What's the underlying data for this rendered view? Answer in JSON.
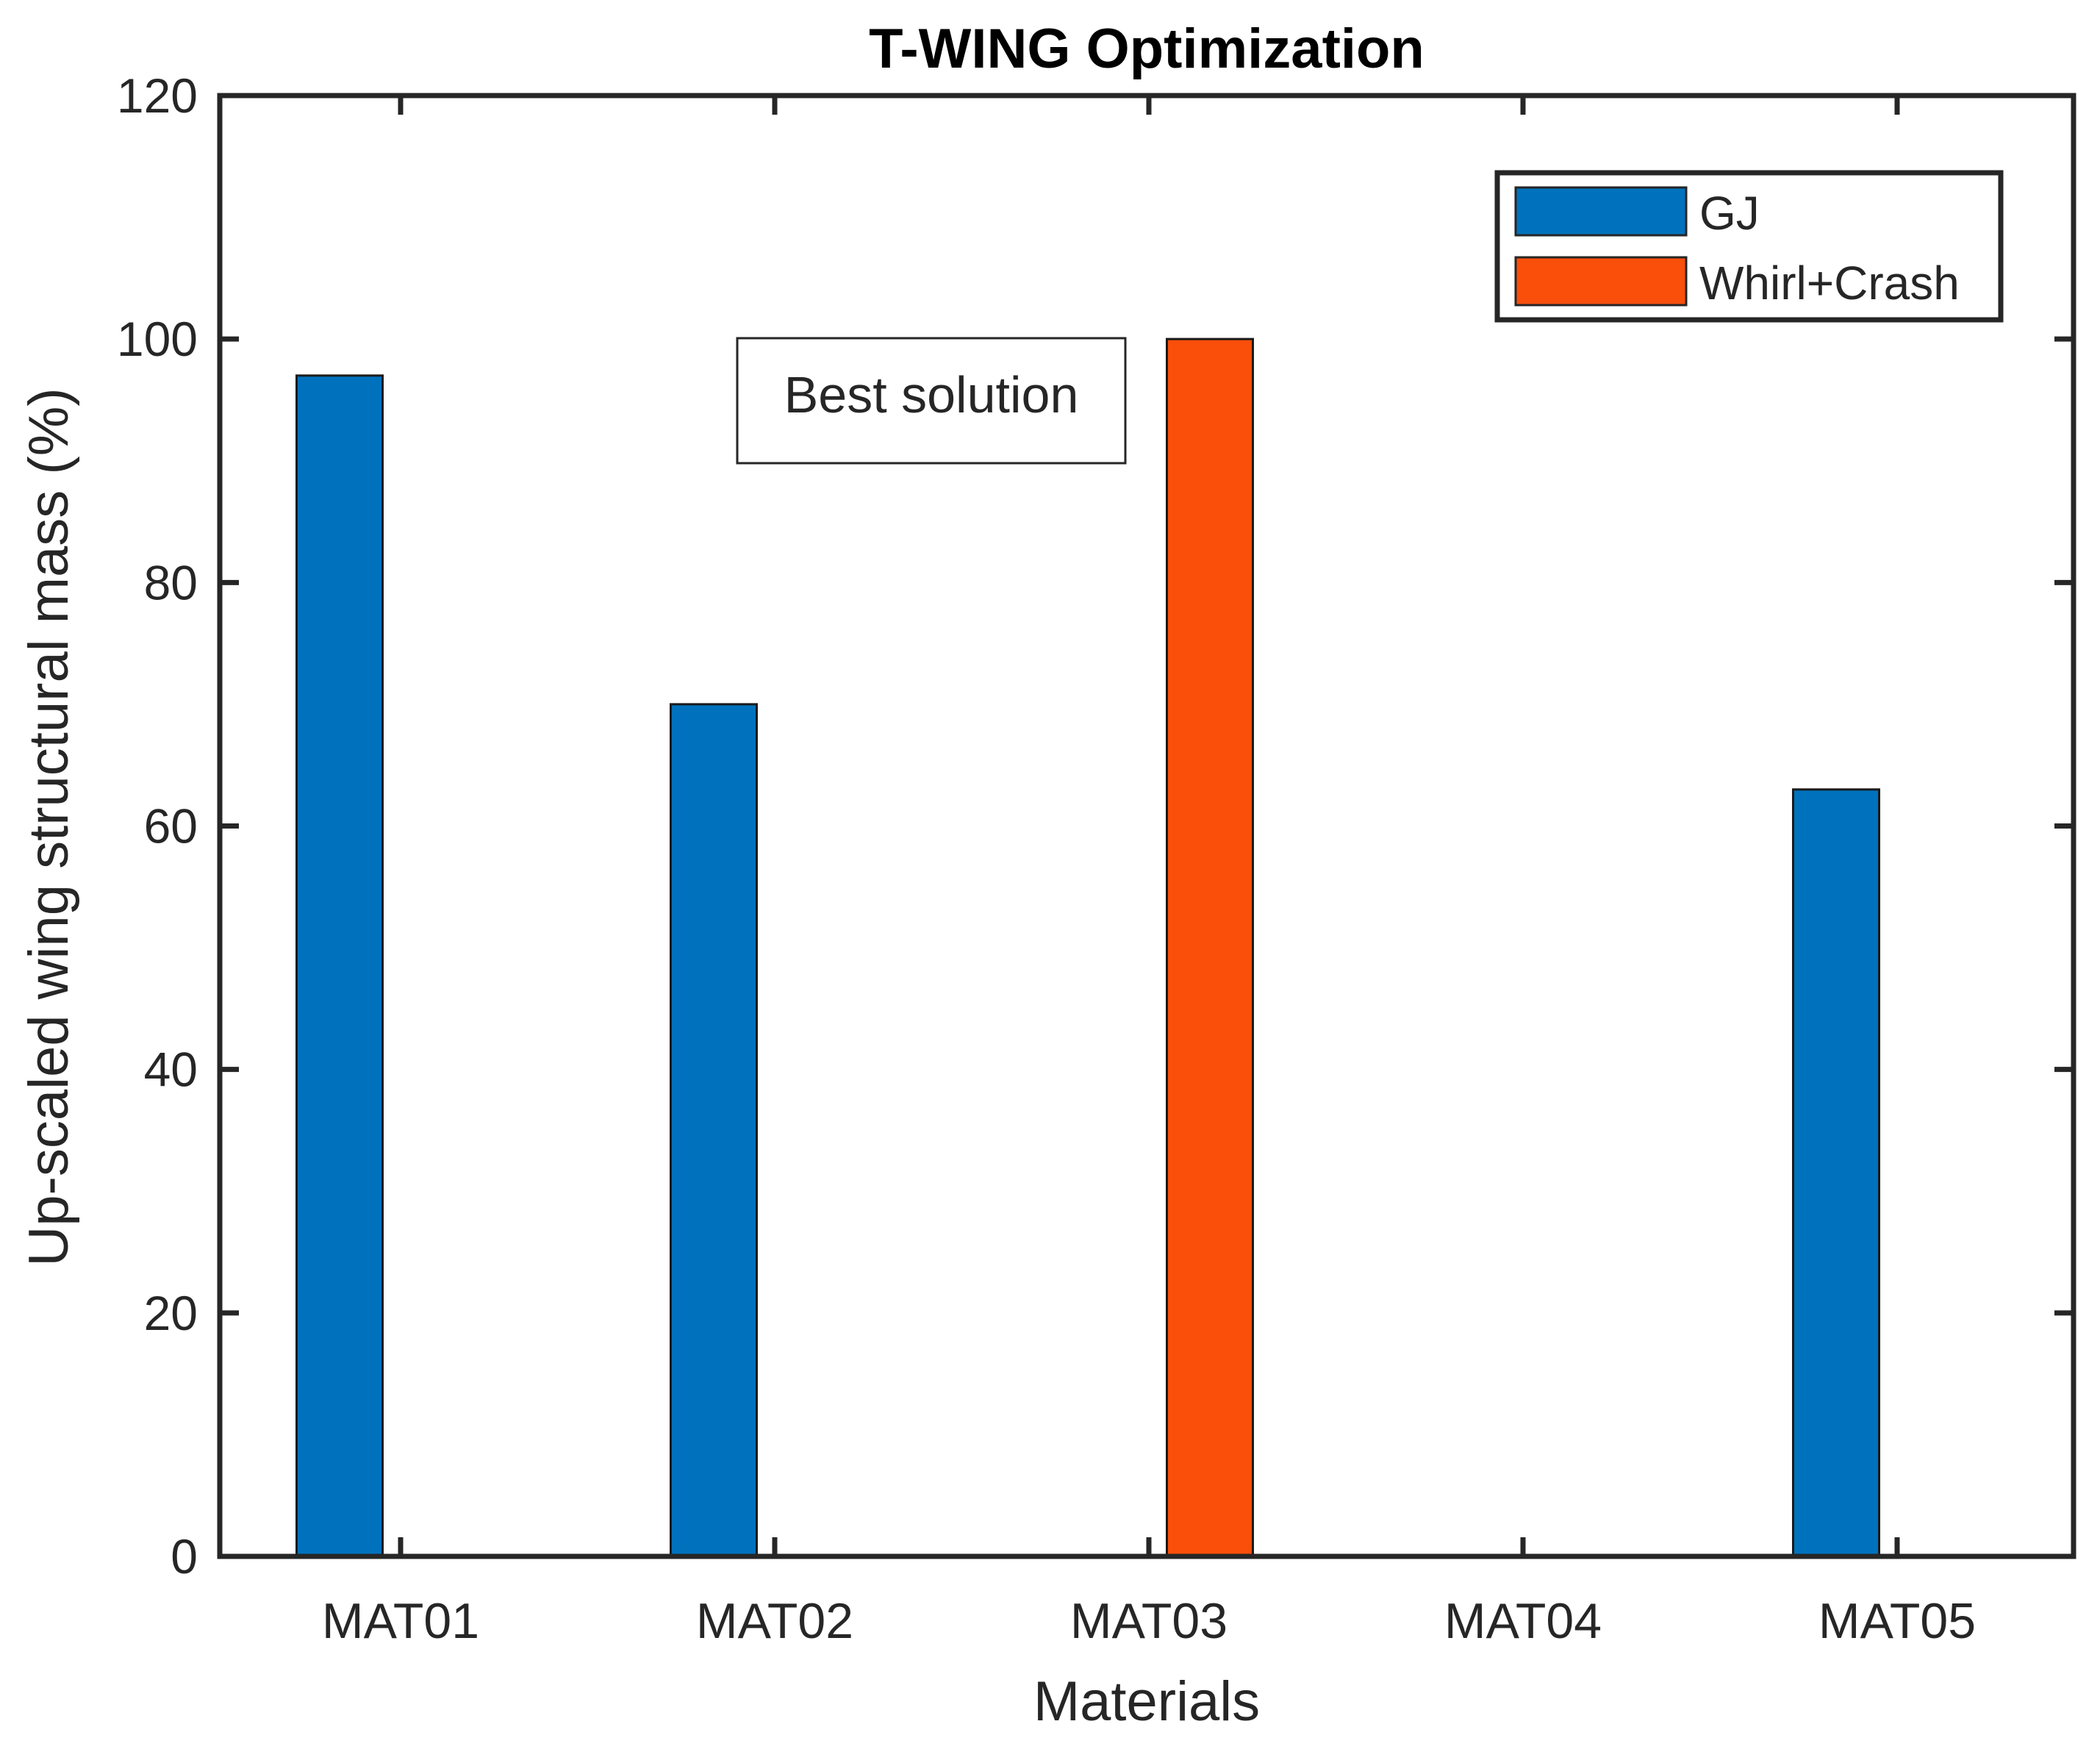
{
  "chart_data": {
    "type": "bar",
    "title": "T-WING Optimization",
    "xlabel": "Materials",
    "ylabel": "Up-scaled wing structural mass (%)",
    "categories": [
      "MAT01",
      "MAT02",
      "MAT03",
      "MAT04",
      "MAT05"
    ],
    "series": [
      {
        "name": "GJ",
        "color": "#0072BD",
        "values": [
          97,
          70,
          0,
          0,
          63
        ]
      },
      {
        "name": "Whirl+Crash",
        "color": "#F94F0A",
        "values": [
          0,
          0,
          100,
          0,
          0
        ]
      }
    ],
    "ylim": [
      0,
      120
    ],
    "yticks": [
      0,
      20,
      40,
      60,
      80,
      100,
      120
    ],
    "grid": false,
    "legend_position": "top-right",
    "annotation": "Best solution"
  }
}
